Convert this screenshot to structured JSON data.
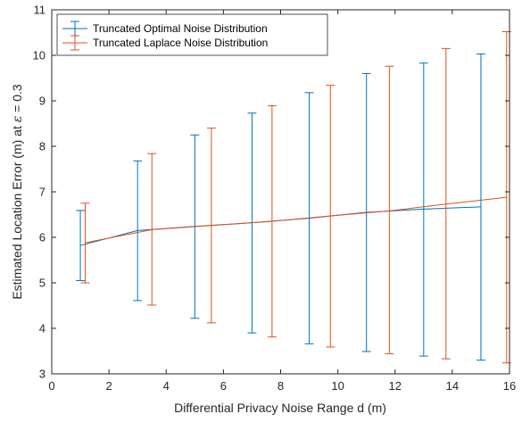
{
  "chart_data": {
    "type": "line",
    "title": "",
    "xlabel": "Differential Privacy Noise Range d (m)",
    "ylabel_prefix": "Estimated Location Error (m) at ",
    "ylabel_symbol": "ε",
    "ylabel_suffix": " = 0.3",
    "xlim": [
      0,
      16
    ],
    "ylim": [
      3,
      11
    ],
    "xticks": [
      0,
      2,
      4,
      6,
      8,
      10,
      12,
      14,
      16
    ],
    "yticks": [
      3,
      4,
      5,
      6,
      7,
      8,
      9,
      10,
      11
    ],
    "grid": false,
    "legend_position": "top-left",
    "series": [
      {
        "name": "Truncated Optimal Noise Distribution",
        "color": "#0072BD",
        "x": [
          1,
          3,
          5,
          7,
          9,
          11,
          13,
          15
        ],
        "y": [
          5.82,
          6.15,
          6.24,
          6.32,
          6.42,
          6.55,
          6.62,
          6.67
        ],
        "lower": [
          5.05,
          4.61,
          4.22,
          3.9,
          3.66,
          3.49,
          3.39,
          3.3
        ],
        "upper": [
          6.59,
          7.68,
          8.25,
          8.73,
          9.18,
          9.6,
          9.83,
          10.03
        ]
      },
      {
        "name": "Truncated Laplace Noise Distribution",
        "color": "#D95319",
        "x": [
          1.17,
          3.5,
          5.58,
          7.7,
          9.74,
          11.8,
          13.78,
          15.9
        ],
        "y": [
          5.88,
          6.17,
          6.26,
          6.35,
          6.47,
          6.58,
          6.73,
          6.88
        ],
        "lower": [
          5.0,
          4.51,
          4.12,
          3.81,
          3.59,
          3.44,
          3.33,
          3.24
        ],
        "upper": [
          6.75,
          7.84,
          8.4,
          8.89,
          9.34,
          9.76,
          10.15,
          10.52
        ]
      }
    ]
  }
}
